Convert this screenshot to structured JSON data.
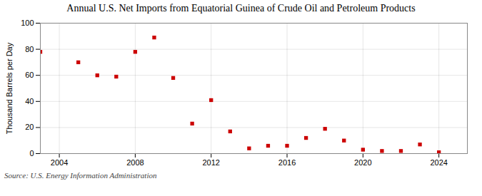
{
  "chart_data": {
    "type": "scatter",
    "title": "Annual U.S. Net Imports from Equatorial Guinea of Crude Oil and Petroleum Products",
    "ylabel": "Thousand Barrels per Day",
    "annotations": [
      "Source: U.S. Energy Information Administration"
    ],
    "x": [
      2003,
      2005,
      2006,
      2007,
      2008,
      2009,
      2010,
      2011,
      2012,
      2013,
      2014,
      2015,
      2016,
      2017,
      2018,
      2019,
      2020,
      2021,
      2022,
      2023,
      2024
    ],
    "values": [
      78,
      70,
      60,
      59,
      78,
      89,
      58,
      23,
      41,
      17,
      4,
      6,
      6,
      12,
      19,
      10,
      3,
      2,
      2,
      7,
      1
    ],
    "color": "#cc0000",
    "marker": "square",
    "xlim": [
      2003,
      2025.5
    ],
    "ylim": [
      0,
      100
    ],
    "xticks": [
      2004,
      2008,
      2012,
      2016,
      2020,
      2024
    ],
    "yticks": [
      0,
      20,
      40,
      60,
      80,
      100
    ],
    "grid": true
  }
}
